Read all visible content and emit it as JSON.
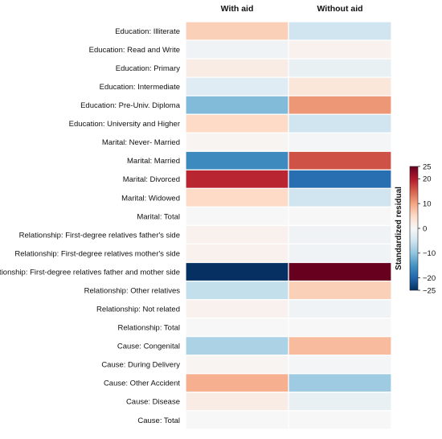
{
  "chart_data": {
    "type": "heatmap",
    "columns": [
      "With aid",
      "Without aid"
    ],
    "rows": [
      "Education: Illiterate",
      "Education: Read and Write",
      "Education: Primary",
      "Education: Intermediate",
      "Education: Pre-Univ. Diploma",
      "Education: University and Higher",
      "Marital: Never- Married",
      "Marital: Married",
      "Marital: Divorced",
      "Marital: Widowed",
      "Marital: Total",
      "Relationship: First-degree relatives father's side",
      "Relationship: First-degree relatives mother's side",
      "Relationship: First-degree relatives father and mother side",
      "Relationship: Other relatives",
      "Relationship: Not related",
      "Relationship: Total",
      "Cause: Congenital",
      "Cause: During Delivery",
      "Cause: Other Accident",
      "Cause: Disease",
      "Cause: Total"
    ],
    "values": [
      [
        6,
        -5
      ],
      [
        -1,
        1
      ],
      [
        2,
        -2
      ],
      [
        -3,
        3
      ],
      [
        -11,
        11
      ],
      [
        5,
        -5
      ],
      [
        0.5,
        -0.5
      ],
      [
        -16,
        16
      ],
      [
        19,
        -19
      ],
      [
        5,
        -5
      ],
      [
        0,
        0
      ],
      [
        1,
        -1
      ],
      [
        1,
        -1
      ],
      [
        -25,
        25
      ],
      [
        -6,
        6
      ],
      [
        1,
        -1
      ],
      [
        0,
        0
      ],
      [
        -8,
        8
      ],
      [
        0.5,
        -0.5
      ],
      [
        9,
        -9
      ],
      [
        2,
        -2
      ],
      [
        0,
        0
      ]
    ],
    "colorbar": {
      "label": "Standardized residual",
      "ticks": [
        25,
        20,
        10,
        0,
        -10,
        -20,
        -25
      ],
      "range": [
        -25,
        25
      ]
    }
  }
}
